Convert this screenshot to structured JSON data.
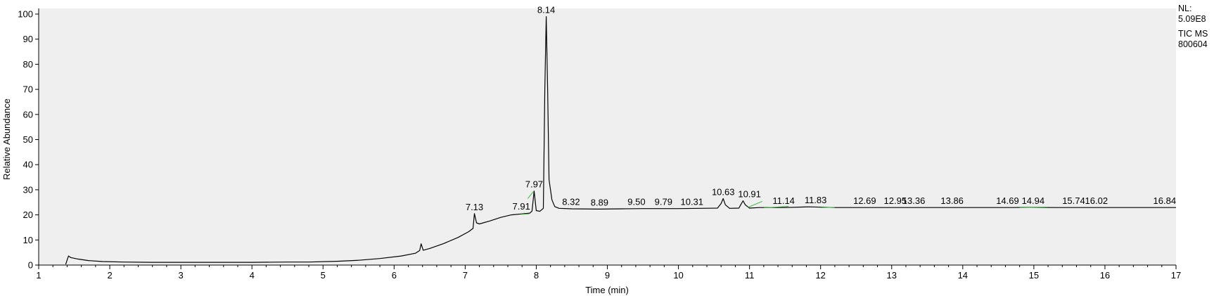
{
  "chart_data": {
    "type": "line",
    "xlabel": "Time (min)",
    "ylabel": "Relative Abundance",
    "xlim": [
      1,
      17
    ],
    "ylim": [
      0,
      100
    ],
    "x_ticks": [
      1,
      2,
      3,
      4,
      5,
      6,
      7,
      8,
      9,
      10,
      11,
      12,
      13,
      14,
      15,
      16,
      17
    ],
    "y_ticks": [
      0,
      10,
      20,
      30,
      40,
      50,
      60,
      70,
      80,
      90,
      100
    ],
    "grid": false,
    "background_color": "#efefef",
    "trace_color": "#000000",
    "baseline_color": "#3cb43c",
    "info": [
      "NL:",
      "5.09E8",
      "TIC  MS",
      "800604"
    ],
    "series": [
      {
        "values": [
          [
            1.38,
            0.3
          ],
          [
            1.42,
            3.6
          ],
          [
            1.45,
            3.0
          ],
          [
            1.55,
            2.4
          ],
          [
            1.7,
            1.8
          ],
          [
            1.9,
            1.4
          ],
          [
            2.2,
            1.2
          ],
          [
            2.6,
            1.1
          ],
          [
            3.0,
            1.1
          ],
          [
            3.5,
            1.1
          ],
          [
            4.0,
            1.1
          ],
          [
            4.5,
            1.2
          ],
          [
            4.8,
            1.2
          ],
          [
            5.2,
            1.5
          ],
          [
            5.5,
            1.9
          ],
          [
            5.8,
            2.6
          ],
          [
            6.1,
            3.6
          ],
          [
            6.3,
            4.7
          ],
          [
            6.36,
            5.8
          ],
          [
            6.38,
            8.5
          ],
          [
            6.41,
            5.9
          ],
          [
            6.5,
            6.6
          ],
          [
            6.7,
            8.6
          ],
          [
            6.9,
            11.0
          ],
          [
            7.05,
            13.3
          ],
          [
            7.11,
            14.6
          ],
          [
            7.13,
            20.5
          ],
          [
            7.16,
            16.8
          ],
          [
            7.2,
            16.4
          ],
          [
            7.35,
            17.6
          ],
          [
            7.5,
            19.0
          ],
          [
            7.65,
            20.0
          ],
          [
            7.8,
            20.4
          ],
          [
            7.91,
            20.7
          ],
          [
            7.94,
            21.5
          ],
          [
            7.97,
            29.5
          ],
          [
            8.0,
            21.7
          ],
          [
            8.05,
            21.4
          ],
          [
            8.1,
            22.6
          ],
          [
            8.12,
            70.0
          ],
          [
            8.14,
            99.0
          ],
          [
            8.16,
            70.0
          ],
          [
            8.18,
            34.0
          ],
          [
            8.22,
            26.0
          ],
          [
            8.26,
            23.3
          ],
          [
            8.32,
            22.6
          ],
          [
            8.5,
            22.4
          ],
          [
            8.89,
            22.3
          ],
          [
            9.2,
            22.4
          ],
          [
            9.5,
            22.5
          ],
          [
            9.79,
            22.5
          ],
          [
            10.0,
            22.5
          ],
          [
            10.31,
            22.6
          ],
          [
            10.55,
            22.7
          ],
          [
            10.6,
            24.5
          ],
          [
            10.63,
            26.5
          ],
          [
            10.66,
            24.0
          ],
          [
            10.72,
            22.6
          ],
          [
            10.85,
            22.7
          ],
          [
            10.88,
            24.2
          ],
          [
            10.91,
            25.6
          ],
          [
            10.94,
            24.0
          ],
          [
            11.0,
            22.7
          ],
          [
            11.14,
            22.9
          ],
          [
            11.5,
            22.9
          ],
          [
            11.83,
            23.2
          ],
          [
            12.2,
            22.9
          ],
          [
            12.69,
            22.9
          ],
          [
            12.95,
            22.9
          ],
          [
            13.36,
            22.9
          ],
          [
            13.86,
            22.9
          ],
          [
            14.3,
            22.9
          ],
          [
            14.69,
            22.9
          ],
          [
            14.94,
            23.0
          ],
          [
            15.3,
            22.9
          ],
          [
            15.74,
            22.9
          ],
          [
            16.02,
            22.9
          ],
          [
            16.5,
            22.9
          ],
          [
            16.84,
            22.9
          ],
          [
            17.0,
            22.9
          ]
        ]
      }
    ],
    "peak_labels": [
      {
        "label": "7.13",
        "x": 7.13,
        "y": 20.5
      },
      {
        "label": "7.91",
        "x": 7.79,
        "y": 20.7
      },
      {
        "label": "7.97",
        "x": 7.97,
        "y": 29.5
      },
      {
        "label": "8.14",
        "x": 8.14,
        "y": 99.0
      },
      {
        "label": "8.32",
        "x": 8.49,
        "y": 22.6
      },
      {
        "label": "8.89",
        "x": 8.89,
        "y": 22.3
      },
      {
        "label": "9.50",
        "x": 9.41,
        "y": 22.5
      },
      {
        "label": "9.79",
        "x": 9.79,
        "y": 22.5
      },
      {
        "label": "10.31",
        "x": 10.19,
        "y": 22.6
      },
      {
        "label": "10.63",
        "x": 10.63,
        "y": 26.5
      },
      {
        "label": "10.91",
        "x": 11.0,
        "y": 25.6
      },
      {
        "label": "11.14",
        "x": 11.48,
        "y": 22.9
      },
      {
        "label": "11.83",
        "x": 11.93,
        "y": 23.2
      },
      {
        "label": "12.69",
        "x": 12.62,
        "y": 22.9
      },
      {
        "label": "12.95",
        "x": 13.05,
        "y": 22.9
      },
      {
        "label": "13.36",
        "x": 13.31,
        "y": 22.9
      },
      {
        "label": "13.86",
        "x": 13.85,
        "y": 22.9
      },
      {
        "label": "14.69",
        "x": 14.63,
        "y": 22.9
      },
      {
        "label": "14.94",
        "x": 14.99,
        "y": 23.0
      },
      {
        "label": "15.74",
        "x": 15.56,
        "y": 22.9
      },
      {
        "label": "16.02",
        "x": 15.88,
        "y": 22.9
      },
      {
        "label": "16.84",
        "x": 16.84,
        "y": 22.9
      }
    ],
    "baseline_marks": [
      [
        7.78,
        20.2,
        7.9,
        20.4
      ],
      [
        7.88,
        26.5,
        7.96,
        29.3
      ],
      [
        10.98,
        23.0,
        11.18,
        25.4
      ],
      [
        11.2,
        22.8,
        11.55,
        23.4
      ],
      [
        12.0,
        22.9,
        12.2,
        23.0
      ],
      [
        14.8,
        22.9,
        15.2,
        23.1
      ]
    ]
  }
}
